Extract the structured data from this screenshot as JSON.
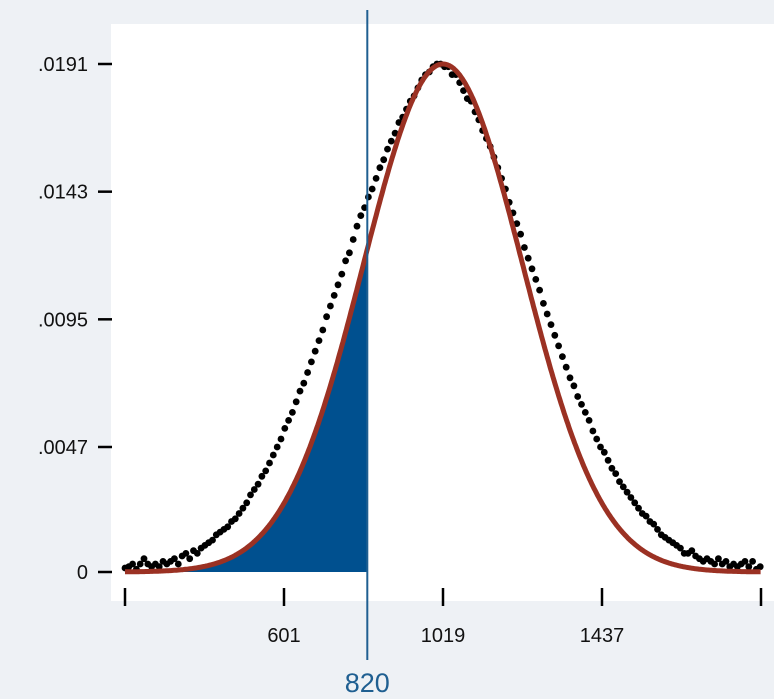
{
  "chart_data": {
    "type": "line",
    "title": "",
    "xlabel": "",
    "ylabel": "",
    "xlim": [
      183,
      1855
    ],
    "ylim": [
      0,
      0.0191
    ],
    "x_ticks": [
      {
        "value": 183,
        "label": ""
      },
      {
        "value": 601,
        "label": "601"
      },
      {
        "value": 1019,
        "label": "1019"
      },
      {
        "value": 1437,
        "label": "1437"
      },
      {
        "value": 1855,
        "label": ""
      }
    ],
    "y_ticks": [
      {
        "value": 0,
        "label": "0"
      },
      {
        "value": 0.0047,
        "label": ".0047"
      },
      {
        "value": 0.0095,
        "label": ".0095"
      },
      {
        "value": 0.0143,
        "label": ".0143"
      },
      {
        "value": 0.0191,
        "label": ".0191"
      }
    ],
    "curve": {
      "type": "normal-fit",
      "mean": 1019,
      "sd": 209,
      "peak": 0.0191
    },
    "marker": {
      "x": 820,
      "label": "820",
      "shaded_region": "left-of-marker"
    },
    "scatter_points": [
      [
        183,
        0.00015
      ],
      [
        193,
        0.0002
      ],
      [
        203,
        0.0003
      ],
      [
        213,
        0.0001
      ],
      [
        223,
        0.0003
      ],
      [
        233,
        0.0005
      ],
      [
        243,
        0.0003
      ],
      [
        253,
        0.0002
      ],
      [
        263,
        0.0003
      ],
      [
        273,
        0.0002
      ],
      [
        283,
        0.0004
      ],
      [
        293,
        0.0003
      ],
      [
        303,
        0.0004
      ],
      [
        313,
        0.0005
      ],
      [
        323,
        0.0003
      ],
      [
        333,
        0.0006
      ],
      [
        343,
        0.0007
      ],
      [
        353,
        0.0005
      ],
      [
        363,
        0.0008
      ],
      [
        373,
        0.0007
      ],
      [
        383,
        0.0009
      ],
      [
        393,
        0.001
      ],
      [
        403,
        0.0011
      ],
      [
        413,
        0.0012
      ],
      [
        423,
        0.0014
      ],
      [
        433,
        0.0015
      ],
      [
        443,
        0.0016
      ],
      [
        453,
        0.0017
      ],
      [
        463,
        0.0019
      ],
      [
        473,
        0.002
      ],
      [
        483,
        0.0022
      ],
      [
        493,
        0.0024
      ],
      [
        503,
        0.0026
      ],
      [
        513,
        0.0029
      ],
      [
        523,
        0.0031
      ],
      [
        533,
        0.0033
      ],
      [
        543,
        0.0036
      ],
      [
        553,
        0.0038
      ],
      [
        563,
        0.0041
      ],
      [
        573,
        0.0044
      ],
      [
        583,
        0.0047
      ],
      [
        593,
        0.005
      ],
      [
        603,
        0.0054
      ],
      [
        613,
        0.0057
      ],
      [
        623,
        0.006
      ],
      [
        633,
        0.0064
      ],
      [
        643,
        0.0068
      ],
      [
        653,
        0.0071
      ],
      [
        663,
        0.0075
      ],
      [
        673,
        0.0079
      ],
      [
        683,
        0.0083
      ],
      [
        693,
        0.0087
      ],
      [
        703,
        0.0091
      ],
      [
        713,
        0.0096
      ],
      [
        723,
        0.01
      ],
      [
        733,
        0.0104
      ],
      [
        743,
        0.0108
      ],
      [
        753,
        0.0112
      ],
      [
        763,
        0.0117
      ],
      [
        773,
        0.012
      ],
      [
        783,
        0.0125
      ],
      [
        793,
        0.013
      ],
      [
        803,
        0.0134
      ],
      [
        813,
        0.0137
      ],
      [
        823,
        0.0141
      ],
      [
        833,
        0.0144
      ],
      [
        843,
        0.0148
      ],
      [
        853,
        0.0152
      ],
      [
        863,
        0.0155
      ],
      [
        873,
        0.0159
      ],
      [
        883,
        0.0162
      ],
      [
        893,
        0.0165
      ],
      [
        903,
        0.0169
      ],
      [
        913,
        0.0171
      ],
      [
        923,
        0.0174
      ],
      [
        933,
        0.0177
      ],
      [
        943,
        0.0179
      ],
      [
        953,
        0.0182
      ],
      [
        963,
        0.0185
      ],
      [
        973,
        0.0187
      ],
      [
        983,
        0.0188
      ],
      [
        993,
        0.019
      ],
      [
        1003,
        0.0191
      ],
      [
        1013,
        0.0191
      ],
      [
        1023,
        0.019
      ],
      [
        1033,
        0.019
      ],
      [
        1043,
        0.0187
      ],
      [
        1053,
        0.0187
      ],
      [
        1063,
        0.0184
      ],
      [
        1073,
        0.0181
      ],
      [
        1083,
        0.0178
      ],
      [
        1093,
        0.0177
      ],
      [
        1103,
        0.0173
      ],
      [
        1113,
        0.017
      ],
      [
        1123,
        0.0166
      ],
      [
        1133,
        0.0163
      ],
      [
        1143,
        0.016
      ],
      [
        1153,
        0.0156
      ],
      [
        1163,
        0.0152
      ],
      [
        1173,
        0.0148
      ],
      [
        1183,
        0.0144
      ],
      [
        1193,
        0.0139
      ],
      [
        1203,
        0.0135
      ],
      [
        1213,
        0.0131
      ],
      [
        1223,
        0.0127
      ],
      [
        1233,
        0.0122
      ],
      [
        1243,
        0.0118
      ],
      [
        1253,
        0.0114
      ],
      [
        1263,
        0.011
      ],
      [
        1273,
        0.0106
      ],
      [
        1283,
        0.0101
      ],
      [
        1293,
        0.0097
      ],
      [
        1303,
        0.0093
      ],
      [
        1313,
        0.0089
      ],
      [
        1323,
        0.0085
      ],
      [
        1333,
        0.0081
      ],
      [
        1343,
        0.0077
      ],
      [
        1353,
        0.0073
      ],
      [
        1363,
        0.007
      ],
      [
        1373,
        0.0066
      ],
      [
        1383,
        0.0063
      ],
      [
        1393,
        0.006
      ],
      [
        1403,
        0.0057
      ],
      [
        1413,
        0.0053
      ],
      [
        1423,
        0.005
      ],
      [
        1433,
        0.0047
      ],
      [
        1443,
        0.0045
      ],
      [
        1453,
        0.0042
      ],
      [
        1463,
        0.0039
      ],
      [
        1473,
        0.0037
      ],
      [
        1483,
        0.0034
      ],
      [
        1493,
        0.0032
      ],
      [
        1503,
        0.003
      ],
      [
        1513,
        0.0028
      ],
      [
        1523,
        0.0026
      ],
      [
        1533,
        0.0024
      ],
      [
        1543,
        0.0022
      ],
      [
        1553,
        0.0021
      ],
      [
        1563,
        0.0019
      ],
      [
        1573,
        0.0018
      ],
      [
        1583,
        0.0016
      ],
      [
        1593,
        0.0014
      ],
      [
        1603,
        0.0013
      ],
      [
        1613,
        0.0012
      ],
      [
        1623,
        0.0011
      ],
      [
        1633,
        0.001
      ],
      [
        1643,
        0.0009
      ],
      [
        1653,
        0.0007
      ],
      [
        1663,
        0.0007
      ],
      [
        1673,
        0.0008
      ],
      [
        1683,
        0.0006
      ],
      [
        1693,
        0.0005
      ],
      [
        1703,
        0.0004
      ],
      [
        1713,
        0.0005
      ],
      [
        1723,
        0.0004
      ],
      [
        1733,
        0.0003
      ],
      [
        1743,
        0.0005
      ],
      [
        1753,
        0.0003
      ],
      [
        1763,
        0.0004
      ],
      [
        1773,
        0.0002
      ],
      [
        1783,
        0.0003
      ],
      [
        1793,
        0.0002
      ],
      [
        1803,
        0.0003
      ],
      [
        1813,
        0.0004
      ],
      [
        1823,
        0.0002
      ],
      [
        1833,
        0.0004
      ],
      [
        1843,
        0.0001
      ],
      [
        1853,
        0.0002
      ]
    ],
    "grid": false,
    "legend": "none"
  },
  "colors": {
    "background": "#eef1f5",
    "plot_area": "#ffffff",
    "shade": "#00508f",
    "curve": "#9b3123",
    "points": "#000000",
    "marker": "#1f5f91",
    "axis": "#000000"
  }
}
